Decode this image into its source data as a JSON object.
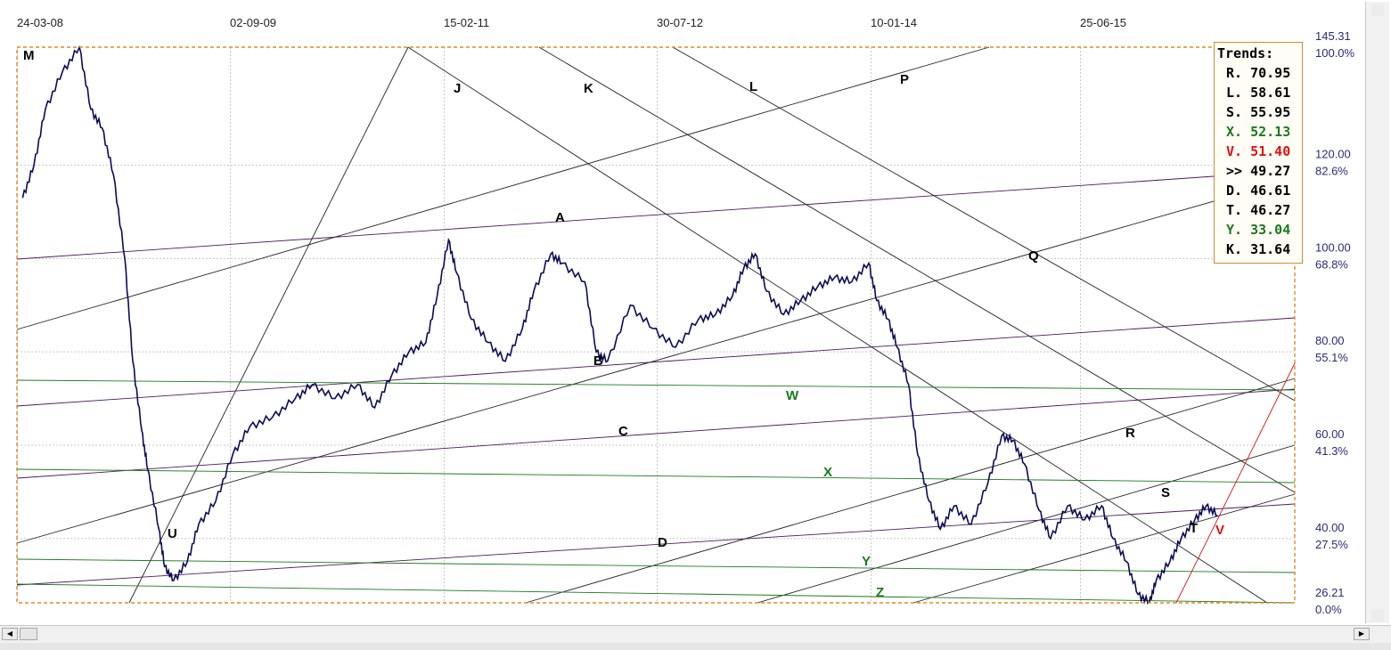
{
  "chart_data": {
    "type": "line",
    "x_dates": [
      "24-03-08",
      "02-09-09",
      "15-02-11",
      "30-07-12",
      "10-01-14",
      "25-06-15"
    ],
    "y_ticks": [
      {
        "value": "145.31",
        "pct": "100.0%"
      },
      {
        "value": "120.00",
        "pct": "82.6%"
      },
      {
        "value": "100.00",
        "pct": "68.8%"
      },
      {
        "value": "80.00",
        "pct": "55.1%"
      },
      {
        "value": "60.00",
        "pct": "41.3%"
      },
      {
        "value": "40.00",
        "pct": "27.5%"
      },
      {
        "value": "26.21",
        "pct": "0.0%"
      }
    ],
    "ylim": [
      26.21,
      145.31
    ],
    "grid": true,
    "price_series": [
      [
        2008.0,
        113
      ],
      [
        2008.1,
        120
      ],
      [
        2008.2,
        132
      ],
      [
        2008.35,
        140
      ],
      [
        2008.5,
        145.3
      ],
      [
        2008.6,
        132
      ],
      [
        2008.7,
        128
      ],
      [
        2008.8,
        118
      ],
      [
        2008.9,
        100
      ],
      [
        2008.97,
        78
      ],
      [
        2009.05,
        63
      ],
      [
        2009.1,
        55
      ],
      [
        2009.2,
        42
      ],
      [
        2009.25,
        34
      ],
      [
        2009.33,
        31
      ],
      [
        2009.45,
        35
      ],
      [
        2009.55,
        43
      ],
      [
        2009.7,
        48
      ],
      [
        2009.85,
        58
      ],
      [
        2010.0,
        64
      ],
      [
        2010.2,
        66
      ],
      [
        2010.4,
        70
      ],
      [
        2010.55,
        73
      ],
      [
        2010.75,
        70
      ],
      [
        2010.95,
        73
      ],
      [
        2011.1,
        68
      ],
      [
        2011.25,
        75
      ],
      [
        2011.4,
        80
      ],
      [
        2011.55,
        82
      ],
      [
        2011.65,
        92
      ],
      [
        2011.75,
        104
      ],
      [
        2011.82,
        97
      ],
      [
        2011.95,
        87
      ],
      [
        2012.1,
        82
      ],
      [
        2012.25,
        78
      ],
      [
        2012.4,
        85
      ],
      [
        2012.5,
        93
      ],
      [
        2012.65,
        101
      ],
      [
        2012.75,
        99
      ],
      [
        2012.95,
        95
      ],
      [
        2013.05,
        80
      ],
      [
        2013.15,
        78
      ],
      [
        2013.35,
        90
      ],
      [
        2013.55,
        85
      ],
      [
        2013.75,
        81
      ],
      [
        2013.95,
        87
      ],
      [
        2014.1,
        88
      ],
      [
        2014.25,
        92
      ],
      [
        2014.35,
        98
      ],
      [
        2014.45,
        101
      ],
      [
        2014.55,
        93
      ],
      [
        2014.7,
        88
      ],
      [
        2014.85,
        91
      ],
      [
        2015.0,
        94
      ],
      [
        2015.15,
        96
      ],
      [
        2015.3,
        95
      ],
      [
        2015.45,
        99
      ],
      [
        2015.52,
        91
      ],
      [
        2015.62,
        87
      ],
      [
        2015.7,
        81
      ],
      [
        2015.8,
        73
      ],
      [
        2015.88,
        58
      ],
      [
        2015.98,
        48
      ],
      [
        2016.08,
        42
      ],
      [
        2016.2,
        47
      ],
      [
        2016.35,
        43
      ],
      [
        2016.5,
        52
      ],
      [
        2016.62,
        62
      ],
      [
        2016.72,
        61
      ],
      [
        2016.82,
        56
      ],
      [
        2016.95,
        46
      ],
      [
        2017.05,
        40
      ],
      [
        2017.2,
        47
      ],
      [
        2017.35,
        44
      ],
      [
        2017.5,
        47
      ],
      [
        2017.6,
        40
      ],
      [
        2017.72,
        35
      ],
      [
        2017.82,
        28
      ],
      [
        2017.92,
        26.3
      ],
      [
        2017.98,
        31
      ],
      [
        2018.1,
        35
      ],
      [
        2018.2,
        40
      ],
      [
        2018.32,
        44
      ],
      [
        2018.42,
        47
      ],
      [
        2018.52,
        45
      ]
    ],
    "trend_labels": [
      {
        "text": "M",
        "color": "#000000"
      },
      {
        "text": "J",
        "color": "#000000"
      },
      {
        "text": "K",
        "color": "#000000"
      },
      {
        "text": "L",
        "color": "#000000"
      },
      {
        "text": "P",
        "color": "#000000"
      },
      {
        "text": "A",
        "color": "#000000"
      },
      {
        "text": "Q",
        "color": "#000000"
      },
      {
        "text": "B",
        "color": "#000000"
      },
      {
        "text": "W",
        "color": "#1a7a1a"
      },
      {
        "text": "C",
        "color": "#000000"
      },
      {
        "text": "R",
        "color": "#000000"
      },
      {
        "text": "X",
        "color": "#1a7a1a"
      },
      {
        "text": "S",
        "color": "#000000"
      },
      {
        "text": "U",
        "color": "#000000"
      },
      {
        "text": "T",
        "color": "#000000"
      },
      {
        "text": "V",
        "color": "#e01010"
      },
      {
        "text": "D",
        "color": "#000000"
      },
      {
        "text": "Y",
        "color": "#1a7a1a"
      },
      {
        "text": "Z",
        "color": "#1a7a1a"
      }
    ],
    "colors": {
      "price": "#0a0a5a",
      "trend_black": "#222222",
      "trend_purple": "#4a1a5a",
      "trend_green": "#1a7a1a",
      "trend_red": "#e01010",
      "frame": "#e08a20",
      "grid": "#c8c8c8"
    }
  },
  "trends_panel": {
    "title": "Trends:",
    "rows": [
      {
        "label": "R. 70.95",
        "color": "#000000"
      },
      {
        "label": "L. 58.61",
        "color": "#000000"
      },
      {
        "label": "S. 55.95",
        "color": "#000000"
      },
      {
        "label": "X. 52.13",
        "color": "#1a7a1a"
      },
      {
        "label": "V. 51.40",
        "color": "#e01010"
      },
      {
        "label": ">> 49.27",
        "color": "#000000"
      },
      {
        "label": "D. 46.61",
        "color": "#000000"
      },
      {
        "label": "T. 46.27",
        "color": "#000000"
      },
      {
        "label": "Y. 33.04",
        "color": "#1a7a1a"
      },
      {
        "label": "K. 31.64",
        "color": "#000000"
      }
    ]
  },
  "scrollbar": {
    "left_arrow": "◀",
    "right_arrow": "▶"
  }
}
